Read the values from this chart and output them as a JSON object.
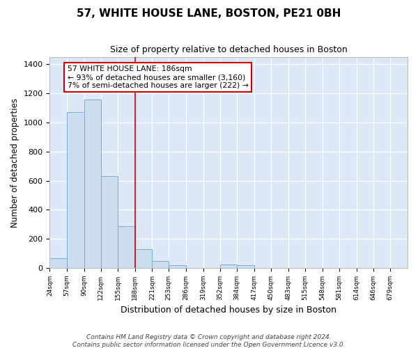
{
  "title": "57, WHITE HOUSE LANE, BOSTON, PE21 0BH",
  "subtitle": "Size of property relative to detached houses in Boston",
  "xlabel": "Distribution of detached houses by size in Boston",
  "ylabel": "Number of detached properties",
  "bar_color": "#ccddf0",
  "bar_edge_color": "#7aadd4",
  "background_color": "#dce8f5",
  "annotation_text": "57 WHITE HOUSE LANE: 186sqm\n← 93% of detached houses are smaller (3,160)\n7% of semi-detached houses are larger (222) →",
  "vline_x": 188,
  "vline_color": "#cc0000",
  "footer": "Contains HM Land Registry data © Crown copyright and database right 2024.\nContains public sector information licensed under the Open Government Licence v3.0.",
  "bins": [
    24,
    57,
    90,
    122,
    155,
    188,
    221,
    253,
    286,
    319,
    352,
    384,
    417,
    450,
    483,
    515,
    548,
    581,
    614,
    646,
    679
  ],
  "values": [
    65,
    1070,
    1160,
    630,
    285,
    130,
    50,
    20,
    0,
    0,
    25,
    20,
    0,
    0,
    0,
    0,
    0,
    0,
    0,
    0
  ],
  "ylim": [
    0,
    1450
  ],
  "yticks": [
    0,
    200,
    400,
    600,
    800,
    1000,
    1200,
    1400
  ]
}
